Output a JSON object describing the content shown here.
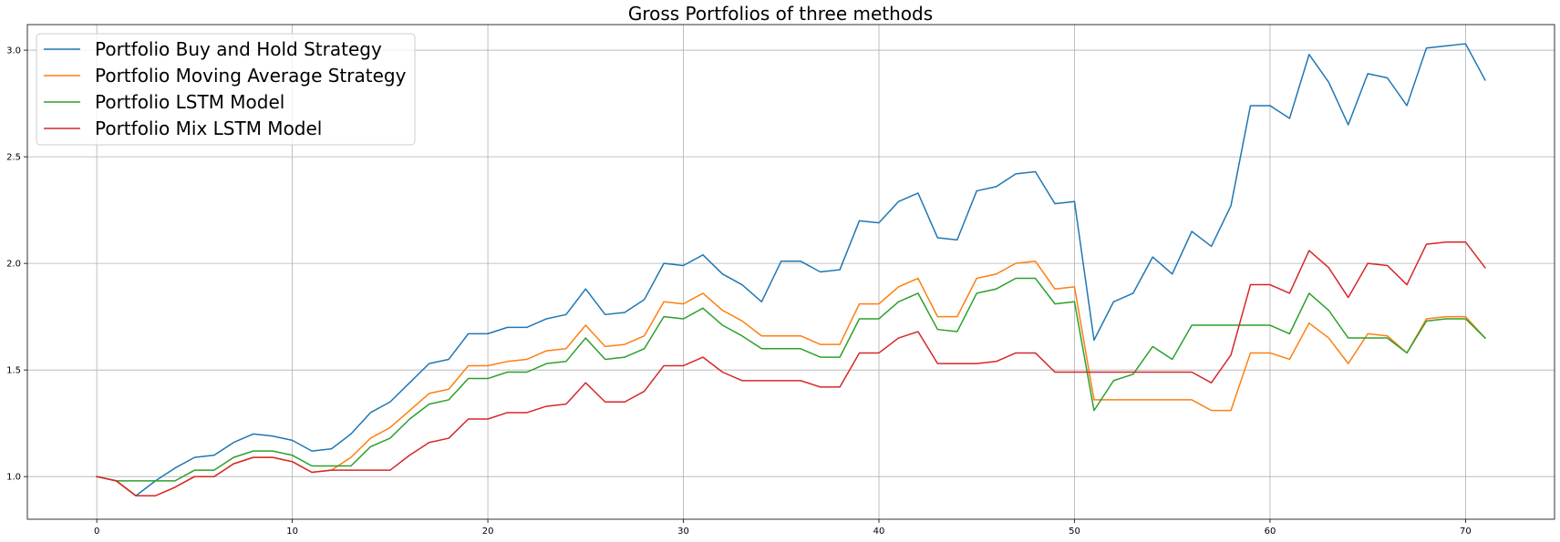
{
  "chart_data": {
    "type": "line",
    "title": "Gross Portfolios of three methods",
    "xlabel": "",
    "ylabel": "",
    "xlim": [
      -3.55,
      74.55
    ],
    "ylim": [
      0.8,
      3.12
    ],
    "xticks": [
      0,
      10,
      20,
      30,
      40,
      50,
      60,
      70
    ],
    "yticks": [
      1.0,
      1.5,
      2.0,
      2.5,
      3.0
    ],
    "xtick_labels": [
      "0",
      "10",
      "20",
      "30",
      "40",
      "50",
      "60",
      "70"
    ],
    "ytick_labels": [
      "1.0",
      "1.5",
      "2.0",
      "2.5",
      "3.0"
    ],
    "grid": true,
    "legend_position": "top-left",
    "x": [
      0,
      1,
      2,
      3,
      4,
      5,
      6,
      7,
      8,
      9,
      10,
      11,
      12,
      13,
      14,
      15,
      16,
      17,
      18,
      19,
      20,
      21,
      22,
      23,
      24,
      25,
      26,
      27,
      28,
      29,
      30,
      31,
      32,
      33,
      34,
      35,
      36,
      37,
      38,
      39,
      40,
      41,
      42,
      43,
      44,
      45,
      46,
      47,
      48,
      49,
      50,
      51,
      52,
      53,
      54,
      55,
      56,
      57,
      58,
      59,
      60,
      61,
      62,
      63,
      64,
      65,
      66,
      67,
      68,
      69,
      70,
      71
    ],
    "series": [
      {
        "name": "Portfolio Buy and Hold Strategy",
        "color": "#1f77b4",
        "values": [
          1.0,
          0.98,
          0.91,
          0.98,
          1.04,
          1.09,
          1.1,
          1.16,
          1.2,
          1.19,
          1.17,
          1.12,
          1.13,
          1.2,
          1.3,
          1.35,
          1.44,
          1.53,
          1.55,
          1.67,
          1.67,
          1.7,
          1.7,
          1.74,
          1.76,
          1.88,
          1.76,
          1.77,
          1.83,
          2.0,
          1.99,
          2.04,
          1.95,
          1.9,
          1.82,
          2.01,
          2.01,
          1.96,
          1.97,
          2.2,
          2.19,
          2.29,
          2.33,
          2.12,
          2.11,
          2.34,
          2.36,
          2.42,
          2.43,
          2.28,
          2.29,
          1.64,
          1.82,
          1.86,
          2.03,
          1.95,
          2.15,
          2.08,
          2.27,
          2.74,
          2.74,
          2.68,
          2.98,
          2.85,
          2.65,
          2.89,
          2.87,
          2.74,
          3.01,
          3.02,
          3.03,
          2.86
        ]
      },
      {
        "name": "Portfolio Moving Average Strategy",
        "color": "#ff7f0e",
        "values": [
          1.0,
          0.98,
          0.91,
          0.91,
          0.95,
          1.0,
          1.0,
          1.06,
          1.09,
          1.09,
          1.07,
          1.02,
          1.03,
          1.09,
          1.18,
          1.23,
          1.31,
          1.39,
          1.41,
          1.52,
          1.52,
          1.54,
          1.55,
          1.59,
          1.6,
          1.71,
          1.61,
          1.62,
          1.66,
          1.82,
          1.81,
          1.86,
          1.78,
          1.73,
          1.66,
          1.66,
          1.66,
          1.62,
          1.62,
          1.81,
          1.81,
          1.89,
          1.93,
          1.75,
          1.75,
          1.93,
          1.95,
          2.0,
          2.01,
          1.88,
          1.89,
          1.36,
          1.36,
          1.36,
          1.36,
          1.36,
          1.36,
          1.31,
          1.31,
          1.58,
          1.58,
          1.55,
          1.72,
          1.65,
          1.53,
          1.67,
          1.66,
          1.58,
          1.74,
          1.75,
          1.75,
          1.65
        ]
      },
      {
        "name": "Portfolio LSTM Model",
        "color": "#2ca02c",
        "values": [
          1.0,
          0.98,
          0.98,
          0.98,
          0.98,
          1.03,
          1.03,
          1.09,
          1.12,
          1.12,
          1.1,
          1.05,
          1.05,
          1.05,
          1.14,
          1.18,
          1.27,
          1.34,
          1.36,
          1.46,
          1.46,
          1.49,
          1.49,
          1.53,
          1.54,
          1.65,
          1.55,
          1.56,
          1.6,
          1.75,
          1.74,
          1.79,
          1.71,
          1.66,
          1.6,
          1.6,
          1.6,
          1.56,
          1.56,
          1.74,
          1.74,
          1.82,
          1.86,
          1.69,
          1.68,
          1.86,
          1.88,
          1.93,
          1.93,
          1.81,
          1.82,
          1.31,
          1.45,
          1.48,
          1.61,
          1.55,
          1.71,
          1.71,
          1.71,
          1.71,
          1.71,
          1.67,
          1.86,
          1.78,
          1.65,
          1.65,
          1.65,
          1.58,
          1.73,
          1.74,
          1.74,
          1.65
        ]
      },
      {
        "name": "Portfolio Mix LSTM Model",
        "color": "#d62728",
        "values": [
          1.0,
          0.98,
          0.91,
          0.91,
          0.95,
          1.0,
          1.0,
          1.06,
          1.09,
          1.09,
          1.07,
          1.02,
          1.03,
          1.03,
          1.03,
          1.03,
          1.1,
          1.16,
          1.18,
          1.27,
          1.27,
          1.3,
          1.3,
          1.33,
          1.34,
          1.44,
          1.35,
          1.35,
          1.4,
          1.52,
          1.52,
          1.56,
          1.49,
          1.45,
          1.45,
          1.45,
          1.45,
          1.42,
          1.42,
          1.58,
          1.58,
          1.65,
          1.68,
          1.53,
          1.53,
          1.53,
          1.54,
          1.58,
          1.58,
          1.49,
          1.49,
          1.49,
          1.49,
          1.49,
          1.49,
          1.49,
          1.49,
          1.44,
          1.57,
          1.9,
          1.9,
          1.86,
          2.06,
          1.98,
          1.84,
          2.0,
          1.99,
          1.9,
          2.09,
          2.1,
          2.1,
          1.98
        ]
      }
    ]
  }
}
